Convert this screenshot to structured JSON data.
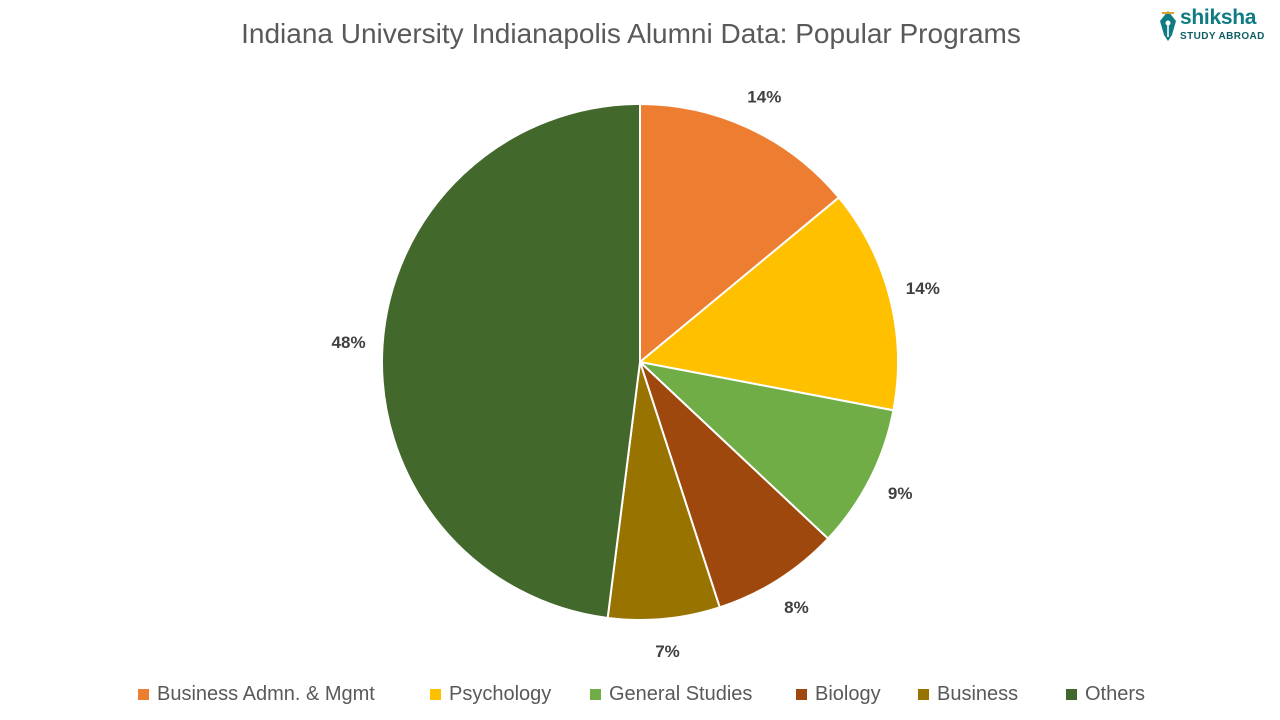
{
  "logo": {
    "name": "shiksha",
    "tagline": "STUDY ABROAD"
  },
  "chart_data": {
    "type": "pie",
    "title": "Indiana University Indianapolis Alumni Data: Popular Programs",
    "categories": [
      "Business Admn. & Mgmt",
      "Psychology",
      "General Studies",
      "Biology",
      "Business",
      "Others"
    ],
    "values": [
      14,
      14,
      9,
      8,
      7,
      48
    ],
    "labels": [
      "14%",
      "14%",
      "9%",
      "8%",
      "7%",
      "48%"
    ],
    "colors": [
      "#ed7d31",
      "#ffc000",
      "#70ad47",
      "#9e480e",
      "#997300",
      "#43682b"
    ],
    "legend_position": "bottom"
  }
}
